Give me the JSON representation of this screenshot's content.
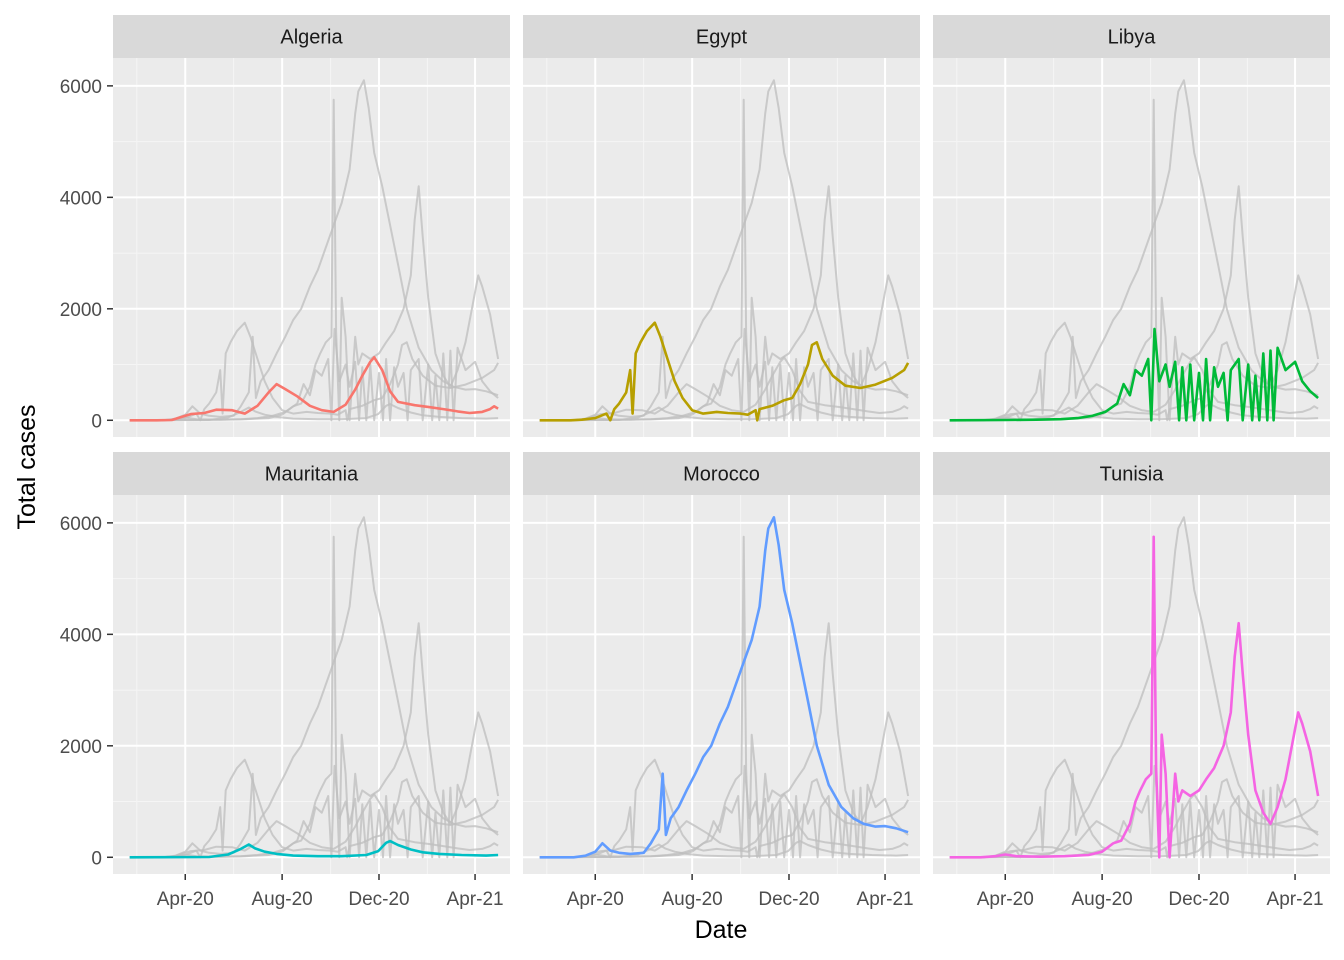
{
  "chart_data": {
    "type": "line",
    "xlabel": "Date",
    "ylabel": "Total cases",
    "x_ticks": [
      "Apr-20",
      "Aug-20",
      "Dec-20",
      "Apr-21"
    ],
    "x_tick_dates": [
      "2020-04-01",
      "2020-08-01",
      "2020-12-01",
      "2021-04-01"
    ],
    "xlim": [
      "2020-01-01",
      "2021-05-15"
    ],
    "y_ticks": [
      "0",
      "2000",
      "4000",
      "6000"
    ],
    "ylim": [
      -300,
      6500
    ],
    "grid": true,
    "legend": "none",
    "background_series_color": "#BDBDBD",
    "panels": [
      {
        "title": "Algeria",
        "color": "#F8766D"
      },
      {
        "title": "Egypt",
        "color": "#B79F00"
      },
      {
        "title": "Libya",
        "color": "#00BA38"
      },
      {
        "title": "Mauritania",
        "color": "#00BFC4"
      },
      {
        "title": "Morocco",
        "color": "#619CFF"
      },
      {
        "title": "Tunisia",
        "color": "#F564E3"
      }
    ],
    "series": [
      {
        "name": "Algeria",
        "points": [
          [
            "2020-01-22",
            0
          ],
          [
            "2020-02-25",
            0
          ],
          [
            "2020-03-15",
            5
          ],
          [
            "2020-04-01",
            80
          ],
          [
            "2020-04-08",
            110
          ],
          [
            "2020-04-25",
            130
          ],
          [
            "2020-05-10",
            190
          ],
          [
            "2020-05-30",
            180
          ],
          [
            "2020-06-15",
            120
          ],
          [
            "2020-07-01",
            260
          ],
          [
            "2020-07-15",
            500
          ],
          [
            "2020-07-25",
            650
          ],
          [
            "2020-08-05",
            560
          ],
          [
            "2020-08-20",
            430
          ],
          [
            "2020-09-05",
            260
          ],
          [
            "2020-09-20",
            180
          ],
          [
            "2020-10-05",
            150
          ],
          [
            "2020-10-20",
            280
          ],
          [
            "2020-11-01",
            550
          ],
          [
            "2020-11-10",
            800
          ],
          [
            "2020-11-20",
            1050
          ],
          [
            "2020-11-25",
            1130
          ],
          [
            "2020-12-05",
            900
          ],
          [
            "2020-12-15",
            520
          ],
          [
            "2020-12-25",
            330
          ],
          [
            "2021-01-15",
            270
          ],
          [
            "2021-02-01",
            240
          ],
          [
            "2021-02-20",
            200
          ],
          [
            "2021-03-10",
            160
          ],
          [
            "2021-03-25",
            130
          ],
          [
            "2021-04-10",
            150
          ],
          [
            "2021-04-20",
            200
          ],
          [
            "2021-04-25",
            250
          ],
          [
            "2021-04-30",
            210
          ]
        ]
      },
      {
        "name": "Egypt",
        "points": [
          [
            "2020-01-22",
            0
          ],
          [
            "2020-03-01",
            0
          ],
          [
            "2020-03-15",
            10
          ],
          [
            "2020-04-01",
            40
          ],
          [
            "2020-04-15",
            120
          ],
          [
            "2020-04-20",
            0
          ],
          [
            "2020-04-25",
            200
          ],
          [
            "2020-05-01",
            300
          ],
          [
            "2020-05-10",
            500
          ],
          [
            "2020-05-15",
            900
          ],
          [
            "2020-05-18",
            120
          ],
          [
            "2020-05-22",
            1200
          ],
          [
            "2020-05-28",
            1400
          ],
          [
            "2020-06-05",
            1600
          ],
          [
            "2020-06-15",
            1750
          ],
          [
            "2020-06-22",
            1500
          ],
          [
            "2020-07-01",
            1100
          ],
          [
            "2020-07-10",
            700
          ],
          [
            "2020-07-20",
            400
          ],
          [
            "2020-08-01",
            180
          ],
          [
            "2020-08-15",
            120
          ],
          [
            "2020-09-01",
            150
          ],
          [
            "2020-09-15",
            130
          ],
          [
            "2020-10-01",
            120
          ],
          [
            "2020-10-10",
            100
          ],
          [
            "2020-10-20",
            180
          ],
          [
            "2020-10-22",
            0
          ],
          [
            "2020-10-25",
            200
          ],
          [
            "2020-11-10",
            260
          ],
          [
            "2020-11-25",
            360
          ],
          [
            "2020-12-05",
            400
          ],
          [
            "2020-12-15",
            650
          ],
          [
            "2020-12-25",
            1000
          ],
          [
            "2020-12-30",
            1350
          ],
          [
            "2021-01-05",
            1400
          ],
          [
            "2021-01-12",
            1100
          ],
          [
            "2021-01-25",
            800
          ],
          [
            "2021-02-10",
            620
          ],
          [
            "2021-03-01",
            580
          ],
          [
            "2021-03-20",
            640
          ],
          [
            "2021-04-10",
            760
          ],
          [
            "2021-04-25",
            900
          ],
          [
            "2021-04-30",
            1030
          ]
        ]
      },
      {
        "name": "Libya",
        "points": [
          [
            "2020-01-22",
            0
          ],
          [
            "2020-04-01",
            5
          ],
          [
            "2020-05-10",
            10
          ],
          [
            "2020-06-10",
            20
          ],
          [
            "2020-07-01",
            40
          ],
          [
            "2020-07-20",
            80
          ],
          [
            "2020-08-05",
            150
          ],
          [
            "2020-08-20",
            300
          ],
          [
            "2020-08-28",
            650
          ],
          [
            "2020-09-05",
            450
          ],
          [
            "2020-09-12",
            900
          ],
          [
            "2020-09-20",
            800
          ],
          [
            "2020-09-28",
            1100
          ],
          [
            "2020-10-02",
            0
          ],
          [
            "2020-10-06",
            1640
          ],
          [
            "2020-10-12",
            700
          ],
          [
            "2020-10-20",
            1000
          ],
          [
            "2020-10-25",
            600
          ],
          [
            "2020-11-01",
            1050
          ],
          [
            "2020-11-06",
            0
          ],
          [
            "2020-11-10",
            950
          ],
          [
            "2020-11-15",
            0
          ],
          [
            "2020-11-20",
            1000
          ],
          [
            "2020-11-25",
            0
          ],
          [
            "2020-12-01",
            850
          ],
          [
            "2020-12-06",
            0
          ],
          [
            "2020-12-10",
            1100
          ],
          [
            "2020-12-15",
            0
          ],
          [
            "2020-12-20",
            950
          ],
          [
            "2020-12-25",
            600
          ],
          [
            "2021-01-01",
            850
          ],
          [
            "2021-01-06",
            0
          ],
          [
            "2021-01-10",
            900
          ],
          [
            "2021-01-20",
            1100
          ],
          [
            "2021-01-25",
            0
          ],
          [
            "2021-02-01",
            1000
          ],
          [
            "2021-02-06",
            0
          ],
          [
            "2021-02-10",
            800
          ],
          [
            "2021-02-15",
            0
          ],
          [
            "2021-02-20",
            1200
          ],
          [
            "2021-02-25",
            0
          ],
          [
            "2021-03-01",
            1250
          ],
          [
            "2021-03-05",
            0
          ],
          [
            "2021-03-10",
            1300
          ],
          [
            "2021-03-20",
            900
          ],
          [
            "2021-04-01",
            1050
          ],
          [
            "2021-04-10",
            700
          ],
          [
            "2021-04-20",
            520
          ],
          [
            "2021-04-30",
            400
          ]
        ]
      },
      {
        "name": "Mauritania",
        "points": [
          [
            "2020-01-22",
            0
          ],
          [
            "2020-05-01",
            5
          ],
          [
            "2020-05-25",
            50
          ],
          [
            "2020-06-10",
            150
          ],
          [
            "2020-06-20",
            230
          ],
          [
            "2020-06-28",
            160
          ],
          [
            "2020-07-10",
            100
          ],
          [
            "2020-07-25",
            60
          ],
          [
            "2020-08-15",
            30
          ],
          [
            "2020-09-15",
            20
          ],
          [
            "2020-10-15",
            20
          ],
          [
            "2020-11-15",
            40
          ],
          [
            "2020-11-30",
            110
          ],
          [
            "2020-12-10",
            260
          ],
          [
            "2020-12-15",
            290
          ],
          [
            "2020-12-25",
            220
          ],
          [
            "2021-01-10",
            140
          ],
          [
            "2021-01-25",
            90
          ],
          [
            "2021-02-15",
            60
          ],
          [
            "2021-03-15",
            40
          ],
          [
            "2021-04-15",
            30
          ],
          [
            "2021-04-30",
            40
          ]
        ]
      },
      {
        "name": "Morocco",
        "points": [
          [
            "2020-01-22",
            0
          ],
          [
            "2020-03-05",
            0
          ],
          [
            "2020-03-20",
            30
          ],
          [
            "2020-04-01",
            100
          ],
          [
            "2020-04-10",
            250
          ],
          [
            "2020-04-20",
            120
          ],
          [
            "2020-05-01",
            80
          ],
          [
            "2020-05-15",
            60
          ],
          [
            "2020-06-01",
            80
          ],
          [
            "2020-06-10",
            250
          ],
          [
            "2020-06-20",
            500
          ],
          [
            "2020-06-25",
            1500
          ],
          [
            "2020-06-29",
            400
          ],
          [
            "2020-07-05",
            700
          ],
          [
            "2020-07-15",
            900
          ],
          [
            "2020-07-25",
            1200
          ],
          [
            "2020-08-05",
            1500
          ],
          [
            "2020-08-15",
            1800
          ],
          [
            "2020-08-25",
            2000
          ],
          [
            "2020-09-05",
            2400
          ],
          [
            "2020-09-15",
            2700
          ],
          [
            "2020-09-25",
            3100
          ],
          [
            "2020-10-05",
            3500
          ],
          [
            "2020-10-15",
            3900
          ],
          [
            "2020-10-25",
            4500
          ],
          [
            "2020-11-01",
            5500
          ],
          [
            "2020-11-05",
            5900
          ],
          [
            "2020-11-12",
            6100
          ],
          [
            "2020-11-18",
            5600
          ],
          [
            "2020-11-25",
            4800
          ],
          [
            "2020-12-05",
            4200
          ],
          [
            "2020-12-15",
            3500
          ],
          [
            "2020-12-25",
            2800
          ],
          [
            "2021-01-05",
            2000
          ],
          [
            "2021-01-20",
            1300
          ],
          [
            "2021-02-05",
            900
          ],
          [
            "2021-02-20",
            700
          ],
          [
            "2021-03-05",
            600
          ],
          [
            "2021-03-20",
            550
          ],
          [
            "2021-04-01",
            560
          ],
          [
            "2021-04-15",
            520
          ],
          [
            "2021-04-30",
            450
          ]
        ]
      },
      {
        "name": "Tunisia",
        "points": [
          [
            "2020-01-22",
            0
          ],
          [
            "2020-03-01",
            0
          ],
          [
            "2020-03-20",
            20
          ],
          [
            "2020-04-01",
            50
          ],
          [
            "2020-04-15",
            20
          ],
          [
            "2020-05-15",
            10
          ],
          [
            "2020-06-15",
            20
          ],
          [
            "2020-07-15",
            40
          ],
          [
            "2020-08-01",
            100
          ],
          [
            "2020-08-15",
            250
          ],
          [
            "2020-08-25",
            300
          ],
          [
            "2020-09-05",
            600
          ],
          [
            "2020-09-12",
            1000
          ],
          [
            "2020-09-18",
            1200
          ],
          [
            "2020-09-25",
            1400
          ],
          [
            "2020-10-02",
            1500
          ],
          [
            "2020-10-05",
            5750
          ],
          [
            "2020-10-08",
            1600
          ],
          [
            "2020-10-12",
            0
          ],
          [
            "2020-10-15",
            2200
          ],
          [
            "2020-10-20",
            1500
          ],
          [
            "2020-10-25",
            0
          ],
          [
            "2020-11-01",
            1500
          ],
          [
            "2020-11-05",
            1000
          ],
          [
            "2020-11-10",
            1200
          ],
          [
            "2020-11-20",
            1100
          ],
          [
            "2020-12-01",
            1200
          ],
          [
            "2020-12-10",
            1400
          ],
          [
            "2020-12-20",
            1600
          ],
          [
            "2021-01-01",
            2000
          ],
          [
            "2021-01-10",
            2600
          ],
          [
            "2021-01-15",
            3600
          ],
          [
            "2021-01-20",
            4200
          ],
          [
            "2021-01-25",
            3300
          ],
          [
            "2021-02-01",
            2200
          ],
          [
            "2021-02-10",
            1200
          ],
          [
            "2021-02-20",
            800
          ],
          [
            "2021-03-01",
            600
          ],
          [
            "2021-03-10",
            900
          ],
          [
            "2021-03-20",
            1400
          ],
          [
            "2021-03-28",
            2000
          ],
          [
            "2021-04-05",
            2600
          ],
          [
            "2021-04-10",
            2400
          ],
          [
            "2021-04-20",
            1900
          ],
          [
            "2021-04-30",
            1100
          ]
        ]
      }
    ]
  }
}
